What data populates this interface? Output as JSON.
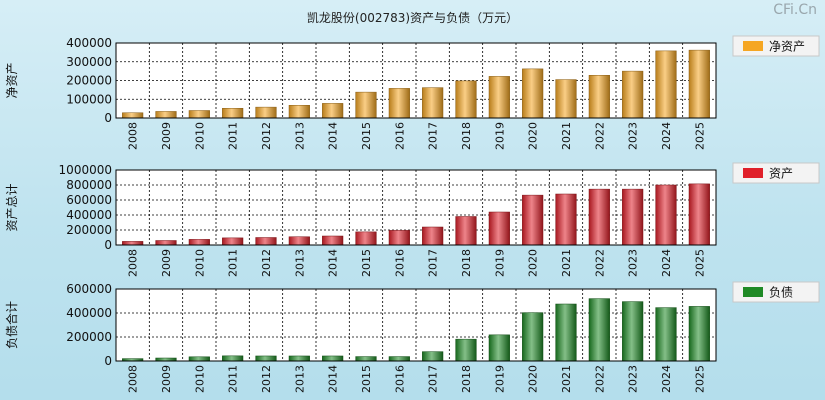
{
  "title": "凯龙股份(002783)资产与负债（万元）",
  "watermark": "CFi.Cn",
  "chart_data": [
    {
      "type": "bar",
      "ylabel": "净资产",
      "legend": "净资产",
      "legend_position": "right",
      "color": "#f5a623",
      "ylim": [
        0,
        400000
      ],
      "yticks": [
        "0",
        "100000",
        "200000",
        "300000",
        "400000"
      ],
      "categories": [
        "2008",
        "2009",
        "2010",
        "2011",
        "2012",
        "2013",
        "2014",
        "2015",
        "2016",
        "2017",
        "2018",
        "2019",
        "2020",
        "2021",
        "2022",
        "2023",
        "2024",
        "2025"
      ],
      "values": [
        28000,
        35000,
        40000,
        52000,
        58000,
        68000,
        78000,
        138000,
        158000,
        162000,
        198000,
        222000,
        262000,
        205000,
        228000,
        250000,
        358000,
        362000
      ]
    },
    {
      "type": "bar",
      "ylabel": "资产总计",
      "legend": "资产",
      "legend_position": "right",
      "color": "#e0202a",
      "ylim": [
        0,
        1000000
      ],
      "yticks": [
        "0",
        "200000",
        "400000",
        "600000",
        "800000",
        "1000000"
      ],
      "categories": [
        "2008",
        "2009",
        "2010",
        "2011",
        "2012",
        "2013",
        "2014",
        "2015",
        "2016",
        "2017",
        "2018",
        "2019",
        "2020",
        "2021",
        "2022",
        "2023",
        "2024",
        "2025"
      ],
      "values": [
        48000,
        60000,
        75000,
        95000,
        100000,
        110000,
        120000,
        175000,
        195000,
        240000,
        380000,
        440000,
        665000,
        680000,
        745000,
        745000,
        800000,
        815000
      ]
    },
    {
      "type": "bar",
      "ylabel": "负债合计",
      "legend": "负债",
      "legend_position": "right",
      "color": "#1f8a26",
      "ylim": [
        0,
        600000
      ],
      "yticks": [
        "0",
        "200000",
        "400000",
        "600000"
      ],
      "categories": [
        "2008",
        "2009",
        "2010",
        "2011",
        "2012",
        "2013",
        "2014",
        "2015",
        "2016",
        "2017",
        "2018",
        "2019",
        "2020",
        "2021",
        "2022",
        "2023",
        "2024",
        "2025"
      ],
      "values": [
        20000,
        25000,
        35000,
        43000,
        42000,
        42000,
        42000,
        37000,
        37000,
        78000,
        182000,
        218000,
        403000,
        475000,
        520000,
        495000,
        445000,
        455000
      ]
    }
  ]
}
